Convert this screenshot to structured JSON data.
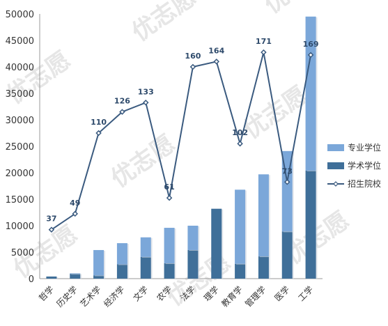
{
  "chart_data": {
    "type": "bar",
    "stacked": true,
    "categories": [
      "哲学",
      "历史学",
      "艺术学",
      "经济学",
      "文学",
      "农学",
      "法学",
      "理学",
      "教育学",
      "管理学",
      "医学",
      "工学"
    ],
    "series": [
      {
        "name": "学术学位",
        "type": "bar",
        "color": "#3f6f99",
        "values": [
          400,
          900,
          600,
          2700,
          4100,
          2900,
          5400,
          13200,
          2800,
          4200,
          8900,
          20400
        ]
      },
      {
        "name": "专业学位",
        "type": "bar",
        "color": "#7ba7d9",
        "values": [
          0,
          100,
          4800,
          4000,
          3700,
          6700,
          4600,
          0,
          14000,
          15500,
          15200,
          29100
        ]
      },
      {
        "name": "招生院校",
        "type": "line",
        "color": "#3a5a7f",
        "values": [
          37,
          49,
          110,
          126,
          133,
          61,
          160,
          164,
          102,
          171,
          73,
          169
        ]
      }
    ],
    "y_axis": {
      "min": 0,
      "max": 50000,
      "step": 5000
    },
    "line_axis": {
      "min": 0,
      "max": 200,
      "shown": false
    },
    "legend_position": "right",
    "grid": false
  },
  "watermark": "优志愿"
}
